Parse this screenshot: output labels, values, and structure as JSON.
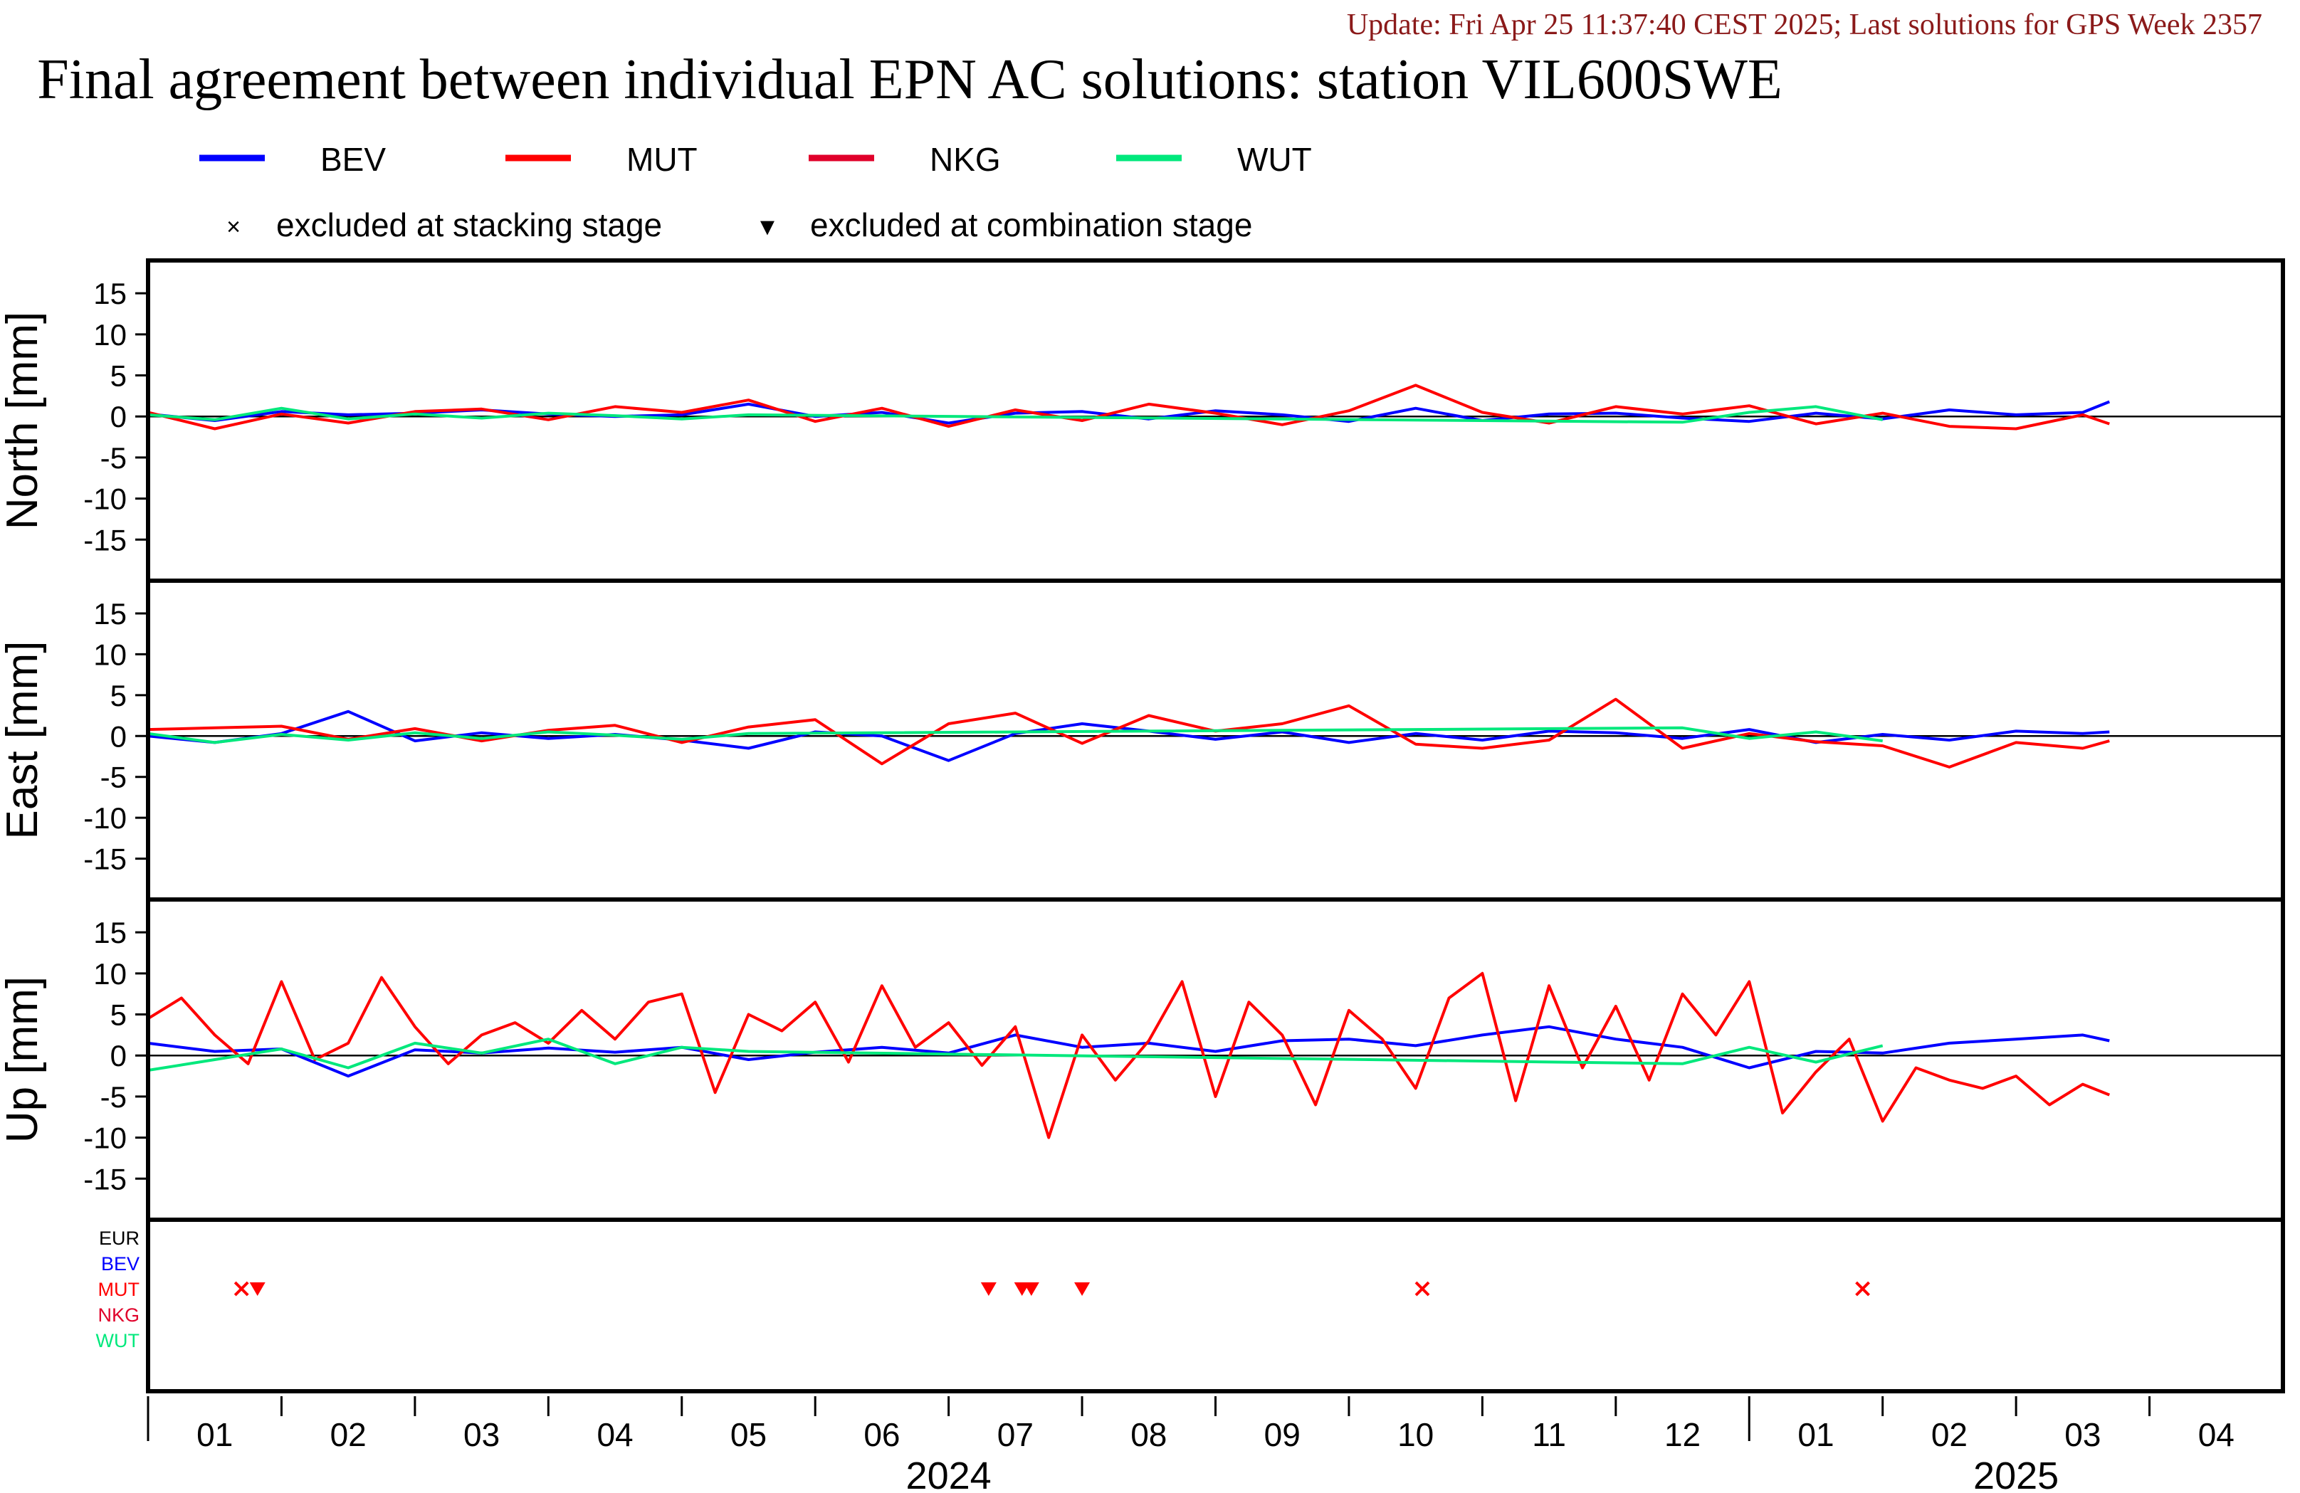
{
  "header": {
    "update_line": "Update: Fri Apr 25 11:37:40 CEST 2025; Last solutions for GPS Week 2357",
    "title": "Final agreement between individual EPN AC solutions: station VIL600SWE"
  },
  "legend": {
    "entries": [
      {
        "name": "BEV",
        "color": "#0000ff"
      },
      {
        "name": "MUT",
        "color": "#ff0000"
      },
      {
        "name": "NKG",
        "color": "#e0002a"
      },
      {
        "name": "WUT",
        "color": "#00e87c"
      }
    ],
    "markers": [
      {
        "symbol": "×",
        "label": "excluded at stacking stage"
      },
      {
        "symbol": "▼",
        "label": "excluded at combination stage"
      }
    ]
  },
  "chart_data": {
    "type": "line",
    "x_unit": "month index starting 2024-01 (0 = start of Jan 2024)",
    "xlim": [
      0,
      16
    ],
    "ylim": [
      -20,
      19
    ],
    "yticks": [
      -15,
      -10,
      -5,
      0,
      5,
      10,
      15
    ],
    "xtick_labels": [
      "01",
      "02",
      "03",
      "04",
      "05",
      "06",
      "07",
      "08",
      "09",
      "10",
      "11",
      "12",
      "01",
      "02",
      "03",
      "04"
    ],
    "year_labels": [
      "2024",
      "2025"
    ],
    "panels": [
      {
        "ylabel": "North [mm]",
        "series": [
          {
            "name": "BEV",
            "color": "#0000ff",
            "x": [
              0.0,
              0.5,
              1.0,
              1.5,
              2.0,
              2.5,
              3.0,
              3.5,
              4.0,
              4.5,
              5.0,
              5.5,
              6.0,
              6.5,
              7.0,
              7.5,
              8.0,
              8.5,
              9.0,
              9.5,
              10.0,
              10.5,
              11.0,
              11.5,
              12.0,
              12.5,
              13.0,
              13.5,
              14.0,
              14.5,
              14.7
            ],
            "y": [
              0.3,
              -0.5,
              0.6,
              0.2,
              0.4,
              0.8,
              0.3,
              0.0,
              0.2,
              1.5,
              0.0,
              0.5,
              -0.8,
              0.4,
              0.6,
              -0.3,
              0.7,
              0.2,
              -0.6,
              1.0,
              -0.5,
              0.3,
              0.4,
              -0.2,
              -0.6,
              0.4,
              -0.3,
              0.8,
              0.2,
              0.5,
              1.8
            ]
          },
          {
            "name": "MUT",
            "color": "#ff0000",
            "x": [
              0.0,
              0.5,
              1.0,
              1.5,
              2.0,
              2.5,
              3.0,
              3.5,
              4.0,
              4.5,
              5.0,
              5.5,
              6.0,
              6.5,
              7.0,
              7.5,
              8.0,
              8.5,
              9.0,
              9.5,
              10.0,
              10.5,
              11.0,
              11.5,
              12.0,
              12.5,
              13.0,
              13.5,
              14.0,
              14.5,
              14.7
            ],
            "y": [
              0.5,
              -1.5,
              0.3,
              -0.8,
              0.6,
              0.9,
              -0.4,
              1.2,
              0.5,
              2.0,
              -0.6,
              1.0,
              -1.2,
              0.8,
              -0.5,
              1.5,
              0.4,
              -1.0,
              0.7,
              3.8,
              0.5,
              -0.8,
              1.2,
              0.3,
              1.3,
              -0.9,
              0.4,
              -1.2,
              -1.5,
              0.2,
              -0.9
            ]
          },
          {
            "name": "WUT",
            "color": "#00e87c",
            "x": [
              0.0,
              0.5,
              1.0,
              1.5,
              2.0,
              2.5,
              3.0,
              3.5,
              4.0,
              4.5,
              11.5,
              12.0,
              12.5,
              13.0
            ],
            "y": [
              0.2,
              -0.4,
              1.0,
              -0.3,
              0.3,
              -0.2,
              0.4,
              0.1,
              -0.3,
              0.2,
              -0.7,
              0.5,
              1.2,
              -0.4
            ]
          }
        ]
      },
      {
        "ylabel": "East [mm]",
        "series": [
          {
            "name": "BEV",
            "color": "#0000ff",
            "x": [
              0.0,
              0.5,
              1.0,
              1.5,
              2.0,
              2.5,
              3.0,
              3.5,
              4.0,
              4.5,
              5.0,
              5.5,
              6.0,
              6.5,
              7.0,
              7.5,
              8.0,
              8.5,
              9.0,
              9.5,
              10.0,
              10.5,
              11.0,
              11.5,
              12.0,
              12.5,
              13.0,
              13.5,
              14.0,
              14.5,
              14.7
            ],
            "y": [
              0.0,
              -0.8,
              0.3,
              3.0,
              -0.6,
              0.4,
              -0.3,
              0.2,
              -0.5,
              -1.5,
              0.5,
              0.0,
              -3.0,
              0.3,
              1.5,
              0.6,
              -0.4,
              0.5,
              -0.8,
              0.3,
              -0.5,
              0.6,
              0.4,
              -0.3,
              0.8,
              -0.8,
              0.2,
              -0.5,
              0.6,
              0.3,
              0.5
            ]
          },
          {
            "name": "MUT",
            "color": "#ff0000",
            "x": [
              0.0,
              0.5,
              1.0,
              1.5,
              2.0,
              2.5,
              3.0,
              3.5,
              4.0,
              4.5,
              5.0,
              5.5,
              6.0,
              6.5,
              7.0,
              7.5,
              8.0,
              8.5,
              9.0,
              9.5,
              10.0,
              10.5,
              11.0,
              11.5,
              12.0,
              12.5,
              13.0,
              13.5,
              14.0,
              14.5,
              14.7
            ],
            "y": [
              0.8,
              1.0,
              1.2,
              -0.4,
              0.9,
              -0.6,
              0.7,
              1.3,
              -0.8,
              1.1,
              2.0,
              -3.4,
              1.5,
              2.8,
              -0.9,
              2.5,
              0.6,
              1.5,
              3.7,
              -1.0,
              -1.5,
              -0.5,
              4.5,
              -1.5,
              0.3,
              -0.7,
              -1.2,
              -3.8,
              -0.8,
              -1.5,
              -0.6
            ]
          },
          {
            "name": "WUT",
            "color": "#00e87c",
            "x": [
              0.0,
              0.5,
              1.0,
              1.5,
              2.0,
              2.5,
              3.0,
              3.5,
              4.0,
              4.5,
              11.5,
              12.0,
              12.5,
              13.0
            ],
            "y": [
              0.3,
              -0.8,
              0.2,
              -0.5,
              0.4,
              -0.3,
              0.5,
              0.1,
              -0.4,
              0.3,
              1.0,
              -0.3,
              0.5,
              -0.6
            ]
          }
        ]
      },
      {
        "ylabel": "Up [mm]",
        "series": [
          {
            "name": "BEV",
            "color": "#0000ff",
            "x": [
              0.0,
              0.5,
              1.0,
              1.5,
              2.0,
              2.5,
              3.0,
              3.5,
              4.0,
              4.5,
              5.0,
              5.5,
              6.0,
              6.5,
              7.0,
              7.5,
              8.0,
              8.5,
              9.0,
              9.5,
              10.0,
              10.5,
              11.0,
              11.5,
              12.0,
              12.5,
              13.0,
              13.5,
              14.0,
              14.5,
              14.7
            ],
            "y": [
              1.5,
              0.5,
              0.8,
              -2.5,
              0.7,
              0.3,
              0.9,
              0.4,
              1.0,
              -0.5,
              0.4,
              1.0,
              0.3,
              2.5,
              1.0,
              1.5,
              0.5,
              1.8,
              2.0,
              1.2,
              2.5,
              3.5,
              2.0,
              1.0,
              -1.5,
              0.5,
              0.3,
              1.5,
              2.0,
              2.5,
              1.8
            ]
          },
          {
            "name": "MUT",
            "color": "#ff0000",
            "x": [
              0.0,
              0.25,
              0.5,
              0.75,
              1.0,
              1.25,
              1.5,
              1.75,
              2.0,
              2.25,
              2.5,
              2.75,
              3.0,
              3.25,
              3.5,
              3.75,
              4.0,
              4.25,
              4.5,
              4.75,
              5.0,
              5.25,
              5.5,
              5.75,
              6.0,
              6.25,
              6.5,
              6.75,
              7.0,
              7.25,
              7.5,
              7.75,
              8.0,
              8.25,
              8.5,
              8.75,
              9.0,
              9.25,
              9.5,
              9.75,
              10.0,
              10.25,
              10.5,
              10.75,
              11.0,
              11.25,
              11.5,
              11.75,
              12.0,
              12.25,
              12.5,
              12.75,
              13.0,
              13.25,
              13.5,
              13.75,
              14.0,
              14.25,
              14.5,
              14.7
            ],
            "y": [
              4.5,
              7.0,
              2.5,
              -1.0,
              9.0,
              -0.5,
              1.5,
              9.5,
              3.5,
              -1.0,
              2.5,
              4.0,
              1.5,
              5.5,
              2.0,
              6.5,
              7.5,
              -4.5,
              5.0,
              3.0,
              6.5,
              -0.8,
              8.5,
              1.0,
              4.0,
              -1.2,
              3.5,
              -10.0,
              2.5,
              -3.0,
              1.8,
              9.0,
              -5.0,
              6.5,
              2.5,
              -6.0,
              5.5,
              2.0,
              -4.0,
              7.0,
              10.0,
              -5.5,
              8.5,
              -1.5,
              6.0,
              -3.0,
              7.5,
              2.5,
              9.0,
              -7.0,
              -2.0,
              2.0,
              -8.0,
              -1.5,
              -3.0,
              -4.0,
              -2.5,
              -6.0,
              -3.5,
              -4.8
            ]
          },
          {
            "name": "WUT",
            "color": "#00e87c",
            "x": [
              0.0,
              0.5,
              1.0,
              1.5,
              2.0,
              2.5,
              3.0,
              3.5,
              4.0,
              4.5,
              11.5,
              12.0,
              12.5,
              13.0
            ],
            "y": [
              -1.8,
              -0.5,
              0.8,
              -1.5,
              1.5,
              0.3,
              2.0,
              -1.0,
              1.0,
              0.5,
              -1.0,
              1.0,
              -0.8,
              1.2
            ]
          }
        ]
      }
    ],
    "exclusion_panel": {
      "row_labels": [
        {
          "name": "EUR",
          "color": "#000000"
        },
        {
          "name": "BEV",
          "color": "#0000ff"
        },
        {
          "name": "MUT",
          "color": "#ff0000"
        },
        {
          "name": "NKG",
          "color": "#e0002a"
        },
        {
          "name": "WUT",
          "color": "#00e87c"
        }
      ],
      "marks": [
        {
          "row": "MUT",
          "x": 0.7,
          "kind": "stacking"
        },
        {
          "row": "MUT",
          "x": 0.82,
          "kind": "combination"
        },
        {
          "row": "MUT",
          "x": 6.3,
          "kind": "combination"
        },
        {
          "row": "MUT",
          "x": 6.55,
          "kind": "combination"
        },
        {
          "row": "MUT",
          "x": 6.62,
          "kind": "combination"
        },
        {
          "row": "MUT",
          "x": 7.0,
          "kind": "combination"
        },
        {
          "row": "MUT",
          "x": 9.55,
          "kind": "stacking"
        },
        {
          "row": "MUT",
          "x": 12.85,
          "kind": "stacking"
        }
      ]
    }
  }
}
